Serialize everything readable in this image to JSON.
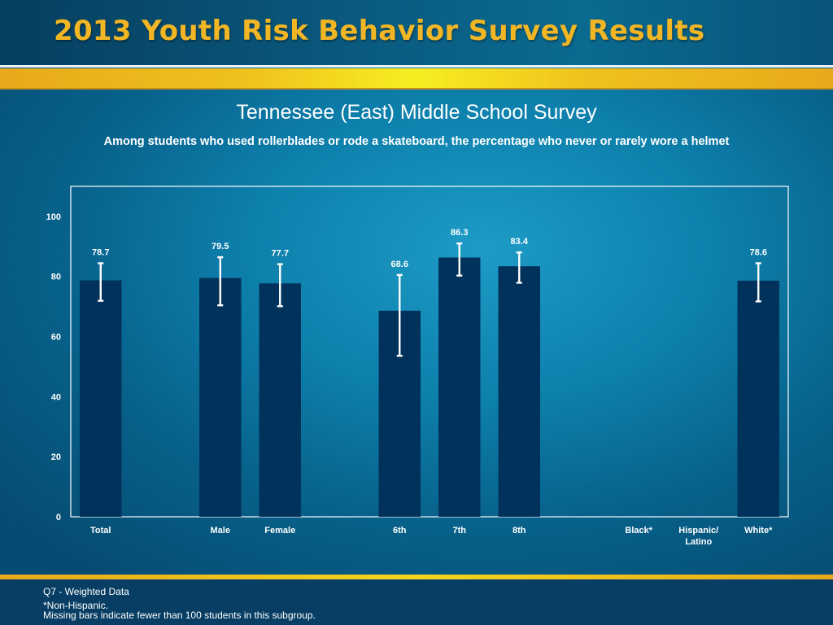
{
  "header": {
    "title": "2013 Youth Risk Behavior Survey Results"
  },
  "chart_data": {
    "type": "bar",
    "title": "Tennessee (East) Middle School Survey",
    "subtitle": "Among students who used rollerblades or rode a skateboard, the percentage who never or rarely wore a helmet",
    "categories": [
      "Total",
      "",
      "Male",
      "Female",
      "",
      "6th",
      "7th",
      "8th",
      "",
      "Black*",
      "Hispanic/ Latino",
      "White*"
    ],
    "values": [
      78.7,
      null,
      79.5,
      77.7,
      null,
      68.6,
      86.3,
      83.4,
      null,
      null,
      null,
      78.6
    ],
    "error_low": [
      71.9,
      null,
      70.4,
      70.1,
      null,
      53.6,
      80.3,
      77.9,
      null,
      null,
      null,
      71.7
    ],
    "error_high": [
      84.4,
      null,
      86.4,
      84.1,
      null,
      80.5,
      91.0,
      88.0,
      null,
      null,
      null,
      84.4
    ],
    "ylim": [
      0,
      110
    ],
    "yticks": [
      0,
      20,
      40,
      60,
      80,
      100
    ],
    "xlabel": "",
    "ylabel": "",
    "grid": false,
    "bar_color": "#00325b",
    "error_bar_color": "#ffffff"
  },
  "footer": {
    "note_1": "Q7 - Weighted Data",
    "note_2": "*Non-Hispanic.",
    "note_3": "Missing bars indicate fewer than 100 students in this subgroup."
  }
}
